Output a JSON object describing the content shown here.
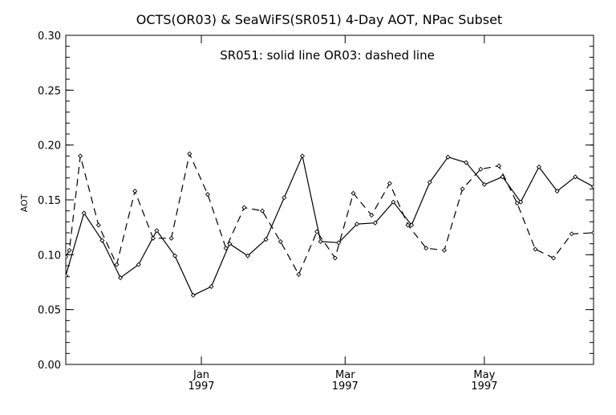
{
  "chart_data": {
    "type": "line",
    "title": "OCTS(OR03) & SeaWiFS(SR051) 4-Day AOT, NPac Subset",
    "annotation": "SR051: solid line   OR03: dashed line",
    "xlabel": "",
    "ylabel": "AOT",
    "ylim": [
      0.0,
      0.3
    ],
    "xlim": [
      0,
      29
    ],
    "y_ticks": [
      0.0,
      0.05,
      0.1,
      0.15,
      0.2,
      0.25,
      0.3
    ],
    "y_tick_labels": [
      "0.00",
      "0.05",
      "0.10",
      "0.15",
      "0.20",
      "0.25",
      "0.30"
    ],
    "x_ticks": [
      {
        "x": 7.45,
        "line1": "Jan",
        "line2": "1997"
      },
      {
        "x": 15.35,
        "line1": "Mar",
        "line2": "1997"
      },
      {
        "x": 23.0,
        "line1": "May",
        "line2": "1997"
      }
    ],
    "grid": false,
    "series": [
      {
        "name": "SR051",
        "style": "solid",
        "x": [
          0,
          1,
          2,
          3,
          4,
          5,
          6,
          7,
          8,
          9,
          10,
          11,
          12,
          13,
          14,
          15,
          16,
          17,
          18,
          19,
          20,
          21,
          22,
          23,
          24,
          25,
          26,
          27,
          28,
          29
        ],
        "values": [
          0.081,
          0.138,
          0.113,
          0.079,
          0.091,
          0.122,
          0.099,
          0.063,
          0.071,
          0.11,
          0.099,
          0.114,
          0.152,
          0.19,
          0.112,
          0.111,
          0.128,
          0.129,
          0.148,
          0.127,
          0.166,
          0.189,
          0.184,
          0.164,
          0.171,
          0.148,
          0.18,
          0.158,
          0.171,
          0.162
        ]
      },
      {
        "name": "OR03",
        "style": "dashed",
        "x": [
          0,
          0.2,
          0.8,
          1.8,
          2.8,
          3.8,
          4.8,
          5.8,
          6.8,
          7.8,
          8.8,
          9.8,
          10.8,
          11.8,
          12.8,
          13.8,
          14.8,
          15.8,
          16.8,
          17.8,
          18.8,
          19.8,
          20.8,
          21.8,
          22.8,
          23.8,
          24.8,
          25.8,
          26.8,
          27.8,
          29
        ],
        "values": [
          0.098,
          0.104,
          0.19,
          0.127,
          0.091,
          0.158,
          0.115,
          0.115,
          0.192,
          0.155,
          0.106,
          0.143,
          0.14,
          0.112,
          0.082,
          0.121,
          0.097,
          0.156,
          0.136,
          0.165,
          0.127,
          0.106,
          0.104,
          0.16,
          0.178,
          0.181,
          0.147,
          0.105,
          0.097,
          0.119,
          0.12
        ]
      }
    ]
  }
}
